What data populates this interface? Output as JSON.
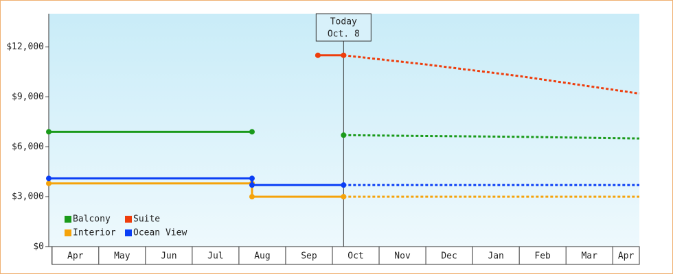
{
  "chart_data": {
    "type": "line",
    "xlim": [
      -0.07,
      12.57
    ],
    "xticks": [
      {
        "value": 0,
        "label": "Apr"
      },
      {
        "value": 1,
        "label": "May"
      },
      {
        "value": 2,
        "label": "Jun"
      },
      {
        "value": 3,
        "label": "Jul"
      },
      {
        "value": 4,
        "label": "Aug"
      },
      {
        "value": 5,
        "label": "Sep"
      },
      {
        "value": 6,
        "label": "Oct"
      },
      {
        "value": 7,
        "label": "Nov"
      },
      {
        "value": 8,
        "label": "Dec"
      },
      {
        "value": 9,
        "label": "Jan"
      },
      {
        "value": 10,
        "label": "Feb"
      },
      {
        "value": 11,
        "label": "Mar"
      },
      {
        "value": 12,
        "label": "Apr"
      }
    ],
    "ylim": [
      0,
      14000
    ],
    "yticks": [
      {
        "value": 0,
        "label": "$0"
      },
      {
        "value": 3000,
        "label": "$3,000"
      },
      {
        "value": 6000,
        "label": "$6,000"
      },
      {
        "value": 9000,
        "label": "$9,000"
      },
      {
        "value": 12000,
        "label": "$12,000"
      }
    ],
    "today": {
      "x": 6.24,
      "label": [
        "Today",
        "Oct. 8"
      ]
    },
    "legend": "lower left",
    "series": [
      {
        "name": "Balcony",
        "color": "#1a9a1a",
        "x": [
          -0.07,
          4.28,
          5.69,
          6.24
        ],
        "values": [
          6900,
          6900,
          null,
          6700
        ],
        "forecast": {
          "x": [
            6.24,
            8,
            10,
            12.57
          ],
          "values": [
            6700,
            6650,
            6600,
            6500
          ]
        }
      },
      {
        "name": "Suite",
        "color": "#ee3d0c",
        "x": [
          5.69,
          6.24
        ],
        "values": [
          11500,
          11500
        ],
        "forecast": {
          "x": [
            6.24,
            8,
            10,
            12.57
          ],
          "values": [
            11500,
            10950,
            10250,
            9200
          ]
        }
      },
      {
        "name": "Interior",
        "color": "#f5a30a",
        "x": [
          -0.07,
          4.28,
          4.28,
          6.24
        ],
        "values": [
          3800,
          3800,
          3000,
          3000
        ],
        "forecast": {
          "x": [
            6.24,
            12.57
          ],
          "values": [
            3000,
            3000
          ]
        }
      },
      {
        "name": "Ocean View",
        "color": "#0a3ef5",
        "x": [
          -0.07,
          4.28,
          4.28,
          6.24
        ],
        "values": [
          4100,
          4100,
          3700,
          3700
        ],
        "forecast": {
          "x": [
            6.24,
            12.57
          ],
          "values": [
            3700,
            3700
          ]
        }
      }
    ]
  }
}
